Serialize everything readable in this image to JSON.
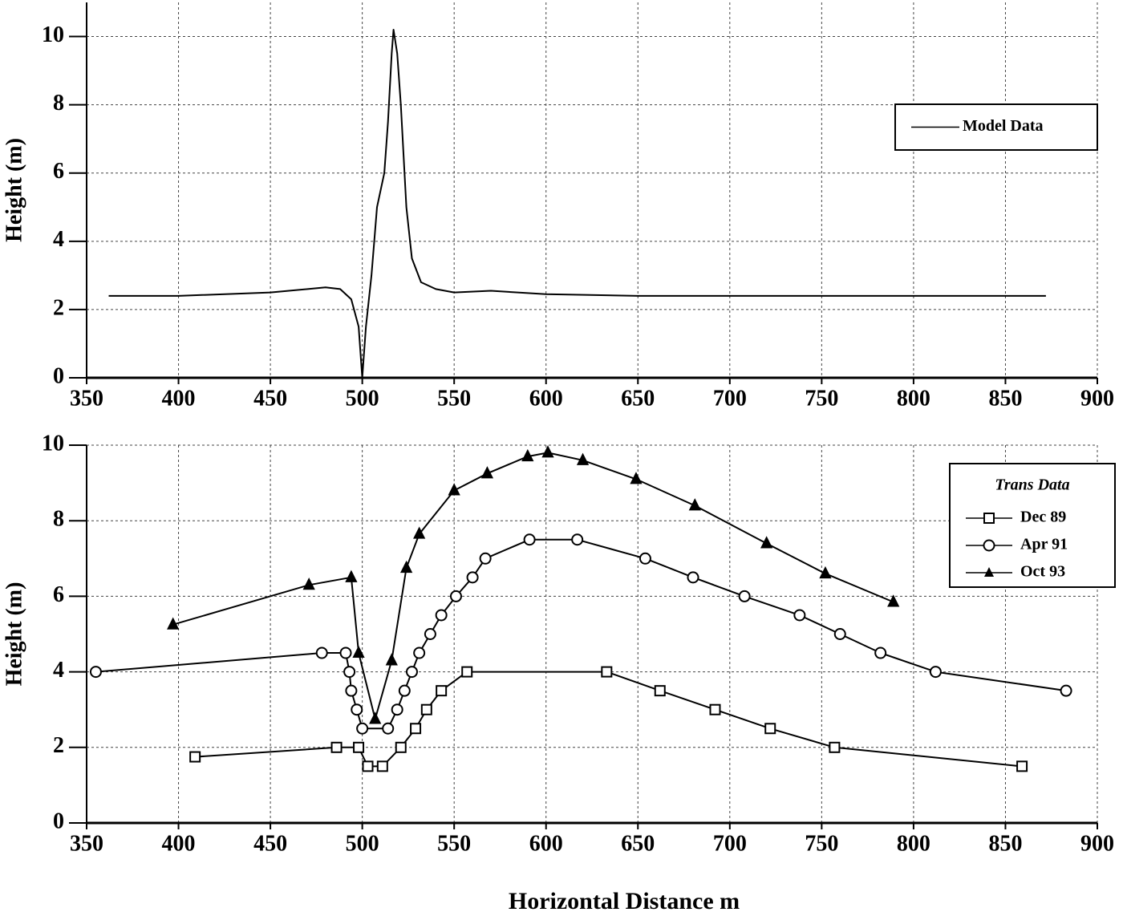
{
  "chart_data": [
    {
      "type": "line",
      "ylabel": "Height (m)",
      "legend": "upper right",
      "xlim": [
        350,
        900
      ],
      "xticks": [
        350,
        400,
        450,
        500,
        550,
        600,
        650,
        700,
        750,
        800,
        850,
        900
      ],
      "ylim": [
        0,
        11
      ],
      "yticks": [
        0,
        2,
        4,
        6,
        8,
        10
      ],
      "grid": true,
      "series": [
        {
          "name": "Model Data",
          "color": "#000000",
          "marker": "none",
          "x": [
            362,
            400,
            450,
            480,
            488,
            494,
            498,
            500,
            502,
            505,
            508,
            512,
            514,
            516,
            517,
            519,
            521,
            524,
            527,
            532,
            540,
            550,
            570,
            600,
            650,
            700,
            800,
            872
          ],
          "values": [
            2.4,
            2.4,
            2.5,
            2.65,
            2.6,
            2.3,
            1.5,
            0,
            1.5,
            3,
            5,
            6,
            7.5,
            9.5,
            10.2,
            9.5,
            8,
            5,
            3.5,
            2.8,
            2.6,
            2.5,
            2.55,
            2.45,
            2.4,
            2.4,
            2.4,
            2.4
          ]
        }
      ]
    },
    {
      "type": "line",
      "ylabel": "Height (m)",
      "xlabel": "Horizontal Distance  m",
      "legend": "upper right",
      "legend_title": "Trans Data",
      "xlim": [
        350,
        900
      ],
      "xticks": [
        350,
        400,
        450,
        500,
        550,
        600,
        650,
        700,
        750,
        800,
        850,
        900
      ],
      "ylim": [
        0,
        10
      ],
      "yticks": [
        0,
        2,
        4,
        6,
        8,
        10
      ],
      "grid": true,
      "series": [
        {
          "name": "Dec 89",
          "color": "#000000",
          "marker": "square",
          "x": [
            409,
            486,
            498,
            503,
            511,
            521,
            529,
            535,
            543,
            557,
            633,
            662,
            692,
            722,
            757,
            859
          ],
          "values": [
            1.75,
            2.0,
            2.0,
            1.5,
            1.5,
            2.0,
            2.5,
            3.0,
            3.5,
            4.0,
            4.0,
            3.5,
            3.0,
            2.5,
            2.0,
            1.5
          ]
        },
        {
          "name": "Apr 91",
          "color": "#000000",
          "marker": "circle",
          "x": [
            355,
            478,
            491,
            493,
            494,
            497,
            500,
            514,
            519,
            523,
            527,
            531,
            537,
            543,
            551,
            560,
            567,
            591,
            617,
            654,
            680,
            708,
            738,
            760,
            782,
            812,
            883
          ],
          "values": [
            4.0,
            4.5,
            4.5,
            4.0,
            3.5,
            3.0,
            2.5,
            2.5,
            3.0,
            3.5,
            4.0,
            4.5,
            5.0,
            5.5,
            6.0,
            6.5,
            7.0,
            7.5,
            7.5,
            7.0,
            6.5,
            6.0,
            5.5,
            5.0,
            4.5,
            4.0,
            3.5
          ]
        },
        {
          "name": "Oct 93",
          "color": "#000000",
          "marker": "triangle",
          "x": [
            397,
            471,
            494,
            498,
            507,
            516,
            524,
            531,
            550,
            568,
            590,
            601,
            620,
            649,
            681,
            720,
            752,
            789
          ],
          "values": [
            5.25,
            6.3,
            6.5,
            4.5,
            2.75,
            4.3,
            6.75,
            7.65,
            8.8,
            9.25,
            9.7,
            9.8,
            9.6,
            9.1,
            8.4,
            7.4,
            6.6,
            5.85
          ]
        }
      ]
    }
  ]
}
